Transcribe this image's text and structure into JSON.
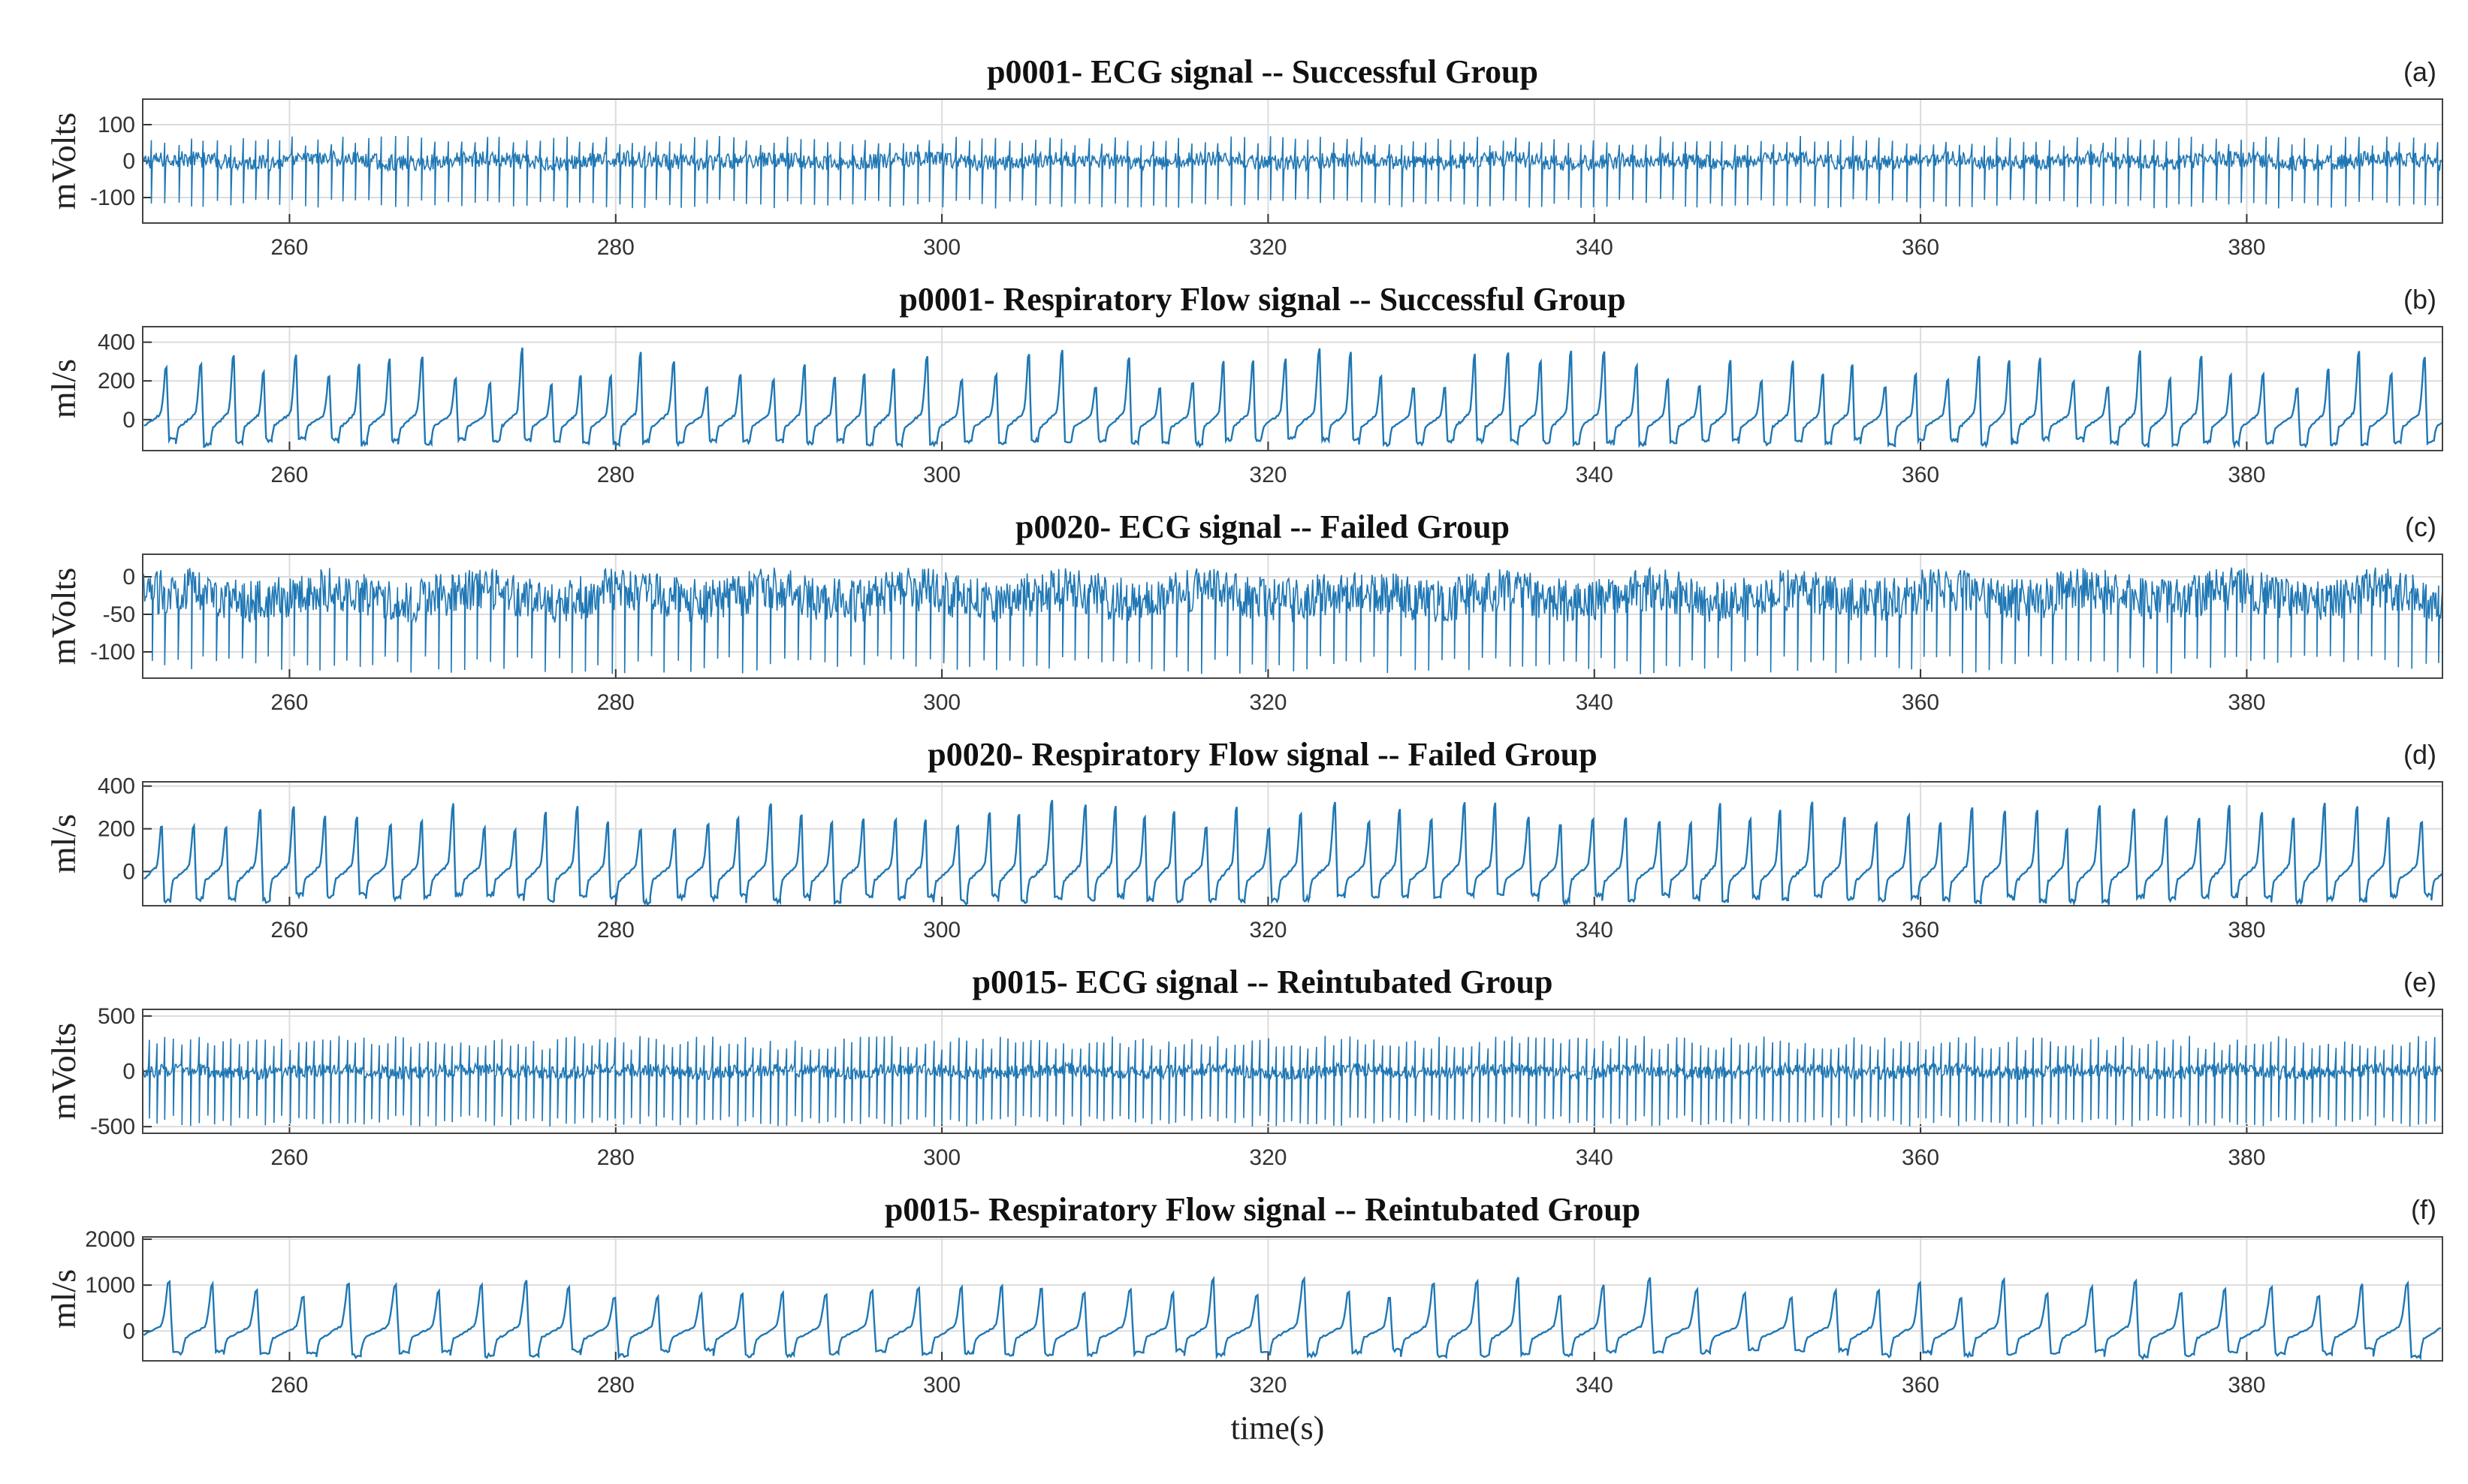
{
  "chart_data": [
    {
      "type": "line",
      "panel": "(a)",
      "title": "p0001- ECG signal --   Successful Group",
      "ylabel": "mVolts",
      "xlim": [
        251,
        392
      ],
      "ylim": [
        -170,
        170
      ],
      "xticks": [
        "260",
        "280",
        "300",
        "320",
        "340",
        "360",
        "380"
      ],
      "yticks": [
        "100",
        "0",
        "-100"
      ],
      "ytick_values": [
        100,
        0,
        -100
      ],
      "grid": true,
      "series": [
        {
          "kind": "ecg",
          "color": "#1f77b4",
          "baseline": 0,
          "beat_period_s": 0.8,
          "spike_low": -130,
          "spike_high": 70,
          "noise": 22
        }
      ]
    },
    {
      "type": "line",
      "panel": "(b)",
      "title": "p0001- Respiratory Flow signal --  Successful Group",
      "ylabel": "ml/s",
      "xlim": [
        251,
        392
      ],
      "ylim": [
        -160,
        480
      ],
      "xticks": [
        "260",
        "280",
        "300",
        "320",
        "340",
        "360",
        "380"
      ],
      "yticks": [
        "400",
        "200",
        "0"
      ],
      "ytick_values": [
        400,
        200,
        0
      ],
      "grid": true,
      "series": [
        {
          "kind": "resp",
          "color": "#1f77b4",
          "breath_period_s": 1.95,
          "peak_min": 200,
          "peak_max": 440,
          "trough": -120
        }
      ]
    },
    {
      "type": "line",
      "panel": "(c)",
      "title": "p0020- ECG signal --   Failed Group",
      "ylabel": "mVolts",
      "xlim": [
        251,
        392
      ],
      "ylim": [
        -135,
        30
      ],
      "xticks": [
        "260",
        "280",
        "300",
        "320",
        "340",
        "360",
        "380"
      ],
      "yticks": [
        "0",
        "-50",
        "-100"
      ],
      "ytick_values": [
        0,
        -50,
        -100
      ],
      "grid": true,
      "series": [
        {
          "kind": "ecg",
          "color": "#1f77b4",
          "baseline": -25,
          "beat_period_s": 0.8,
          "spike_low": -125,
          "spike_high": 15,
          "noise": 30
        }
      ]
    },
    {
      "type": "line",
      "panel": "(d)",
      "title": "p0020- Respiratory Flow signal  --  Failed Group",
      "ylabel": "ml/s",
      "xlim": [
        251,
        392
      ],
      "ylim": [
        -160,
        420
      ],
      "xticks": [
        "260",
        "280",
        "300",
        "320",
        "340",
        "360",
        "380"
      ],
      "yticks": [
        "400",
        "200",
        "0"
      ],
      "ytick_values": [
        400,
        200,
        0
      ],
      "grid": true,
      "series": [
        {
          "kind": "resp",
          "color": "#1f77b4",
          "breath_period_s": 1.95,
          "peak_min": 240,
          "peak_max": 400,
          "trough": -130
        }
      ]
    },
    {
      "type": "line",
      "panel": "(e)",
      "title": "p0015- ECG signal --   Reintubated Group",
      "ylabel": "mVolts",
      "xlim": [
        251,
        392
      ],
      "ylim": [
        -560,
        560
      ],
      "xticks": [
        "260",
        "280",
        "300",
        "320",
        "340",
        "360",
        "380"
      ],
      "yticks": [
        "500",
        "0",
        "-500"
      ],
      "ytick_values": [
        500,
        0,
        -500
      ],
      "grid": true,
      "series": [
        {
          "kind": "ecg",
          "color": "#1f77b4",
          "baseline": 0,
          "beat_period_s": 0.5,
          "spike_low": -500,
          "spike_high": 320,
          "noise": 60
        }
      ]
    },
    {
      "type": "line",
      "panel": "(f)",
      "title": "p0015- Respiratory Flow signal --   Reintubated Group",
      "ylabel": "ml/s",
      "xlabel": "time(s)",
      "xlim": [
        251,
        392
      ],
      "ylim": [
        -650,
        2050
      ],
      "xticks": [
        "260",
        "280",
        "300",
        "320",
        "340",
        "360",
        "380"
      ],
      "yticks": [
        "2000",
        "1000",
        "0"
      ],
      "ytick_values": [
        2000,
        1000,
        0
      ],
      "grid": true,
      "series": [
        {
          "kind": "resp",
          "color": "#1f77b4",
          "breath_period_s": 2.7,
          "peak_min": 900,
          "peak_max": 1450,
          "trough": -500
        }
      ]
    }
  ]
}
